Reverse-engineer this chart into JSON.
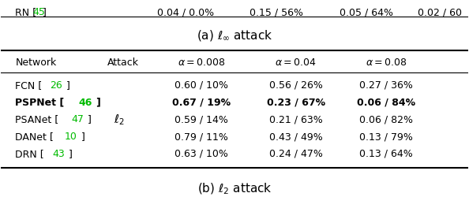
{
  "caption_top": "(a) $\\ell_\\infty$ attack",
  "caption_bottom": "(b) $\\ell_2$ attack",
  "col_headers": [
    "Network",
    "Attack",
    "$\\alpha = 0.008$",
    "$\\alpha = 0.04$",
    "$\\alpha = 0.08$"
  ],
  "attack_label": "$\\ell_2$",
  "rows": [
    {
      "network": "FCN [",
      "cite": "26",
      "end": "]",
      "cite_color": "#00bb00",
      "bold": false,
      "v1": "0.60 / 10%",
      "v2": "0.56 / 26%",
      "v3": "0.27 / 36%"
    },
    {
      "network": "PSPNet [",
      "cite": "46",
      "end": "]",
      "cite_color": "#00bb00",
      "bold": true,
      "v1": "0.67 / 19%",
      "v2": "0.23 / 67%",
      "v3": "0.06 / 84%"
    },
    {
      "network": "PSANet [",
      "cite": "47",
      "end": "]",
      "cite_color": "#00bb00",
      "bold": false,
      "v1": "0.59 / 14%",
      "v2": "0.21 / 63%",
      "v3": "0.06 / 82%"
    },
    {
      "network": "DANet [",
      "cite": "10",
      "end": "]",
      "cite_color": "#00bb00",
      "bold": false,
      "v1": "0.79 / 11%",
      "v2": "0.43 / 49%",
      "v3": "0.13 / 79%"
    },
    {
      "network": "DRN [",
      "cite": "43",
      "end": "]",
      "cite_color": "#00bb00",
      "bold": false,
      "v1": "0.63 / 10%",
      "v2": "0.24 / 47%",
      "v3": "0.13 / 64%"
    }
  ],
  "top_partial_net": "RN [",
  "top_partial_cite": "45",
  "top_partial_cite_color": "#00bb00",
  "top_partial_end": "]",
  "top_partial_vals": [
    "0.04 / 0.0%",
    "0.15 / 56%",
    "0.05 / 64%",
    "0.02 / 60"
  ],
  "bg_color": "#ffffff",
  "text_color": "#000000",
  "font_size": 9.0
}
